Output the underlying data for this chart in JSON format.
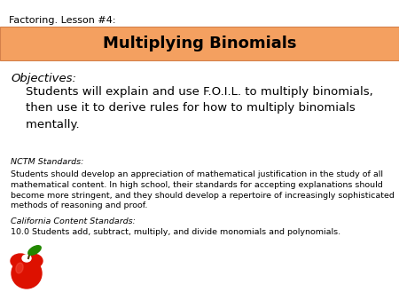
{
  "background_color": "#ffffff",
  "header_text": "Factoring. Lesson #4:",
  "header_fontsize": 8,
  "header_color": "#000000",
  "title_box_color": "#F4A060",
  "title_text": "Multiplying Binomials",
  "title_fontsize": 13,
  "title_color": "#000000",
  "title_box_border_color": "#d4804a",
  "objectives_label": "Objectives:",
  "objectives_body": "    Students will explain and use F.O.I.L. to multiply binomials,\n    then use it to derive rules for how to multiply binomials\n    mentally.",
  "objectives_label_fontsize": 9.5,
  "objectives_body_fontsize": 9.5,
  "nctm_label": "NCTM Standards:",
  "nctm_body": "Students should develop an appreciation of mathematical justification in the study of all\nmathematical content. In high school, their standards for accepting explanations should\nbecome more stringent, and they should develop a repertoire of increasingly sophisticated\nmethods of reasoning and proof.",
  "nctm_fontsize": 6.8,
  "ca_label": "California Content Standards:",
  "ca_body": "10.0 Students add, subtract, multiply, and divide monomials and polynomials.",
  "ca_fontsize": 6.8
}
